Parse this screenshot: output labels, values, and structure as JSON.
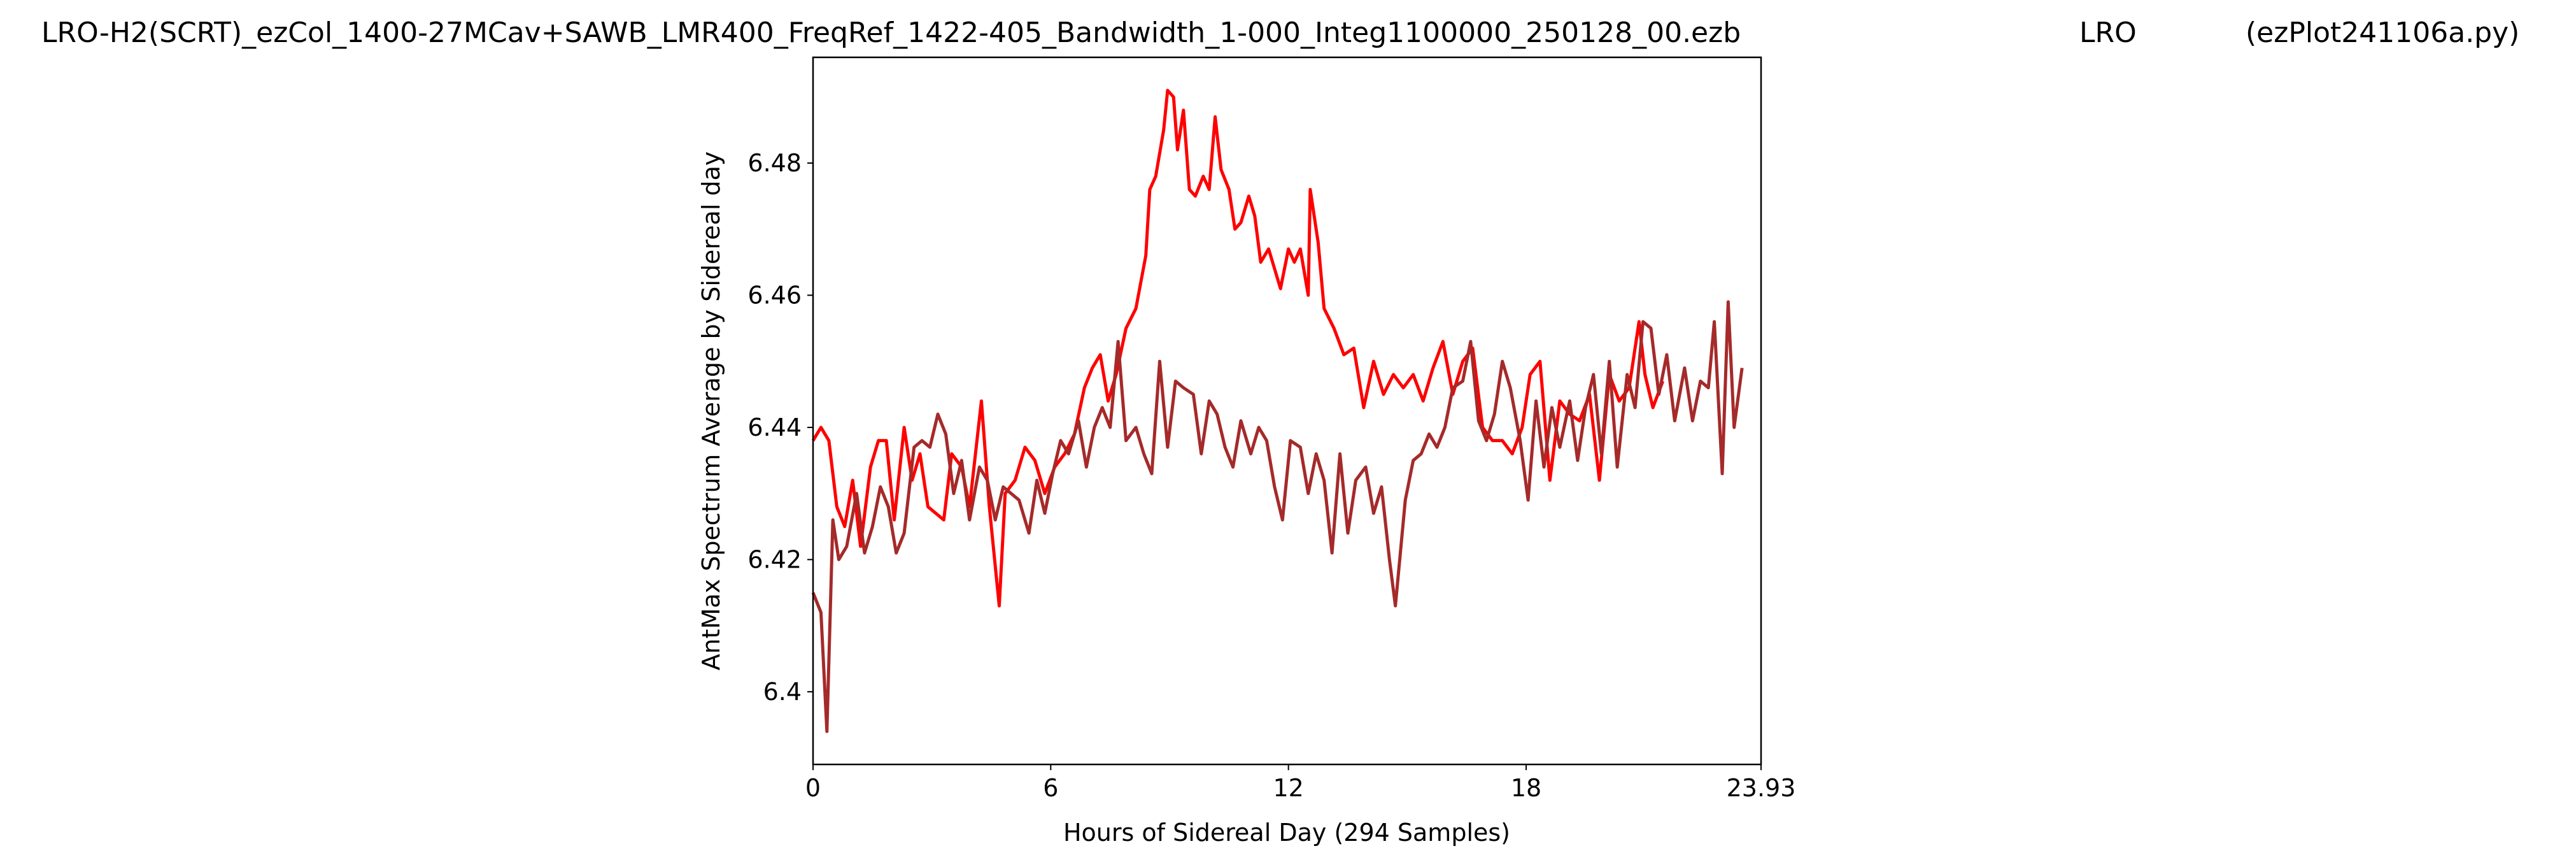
{
  "chart_data": {
    "type": "line",
    "title": [
      "LRO-H2(SCRT)_ezCol_1400-27MCav+SAWB_LMR400_FreqRef_1422-405_Bandwidth_1-000_Integ1100000_250128_00.ezb",
      "LRO",
      "(ezPlot241106a.py)"
    ],
    "xlabel": "Hours of Sidereal Day  (294 Samples)",
    "ylabel": "AntMax Spectrum Average by Sidereal day",
    "xlim": [
      0,
      23.93
    ],
    "xticks": [
      0,
      6,
      12,
      18,
      23.93
    ],
    "ylim": [
      6.389,
      6.496
    ],
    "yticks": [
      6.4,
      6.42,
      6.44,
      6.46,
      6.48
    ],
    "series": [
      {
        "color": "#ff0000",
        "x": [
          0,
          0.2,
          0.4,
          0.6,
          0.8,
          1.0,
          1.2,
          1.45,
          1.65,
          1.85,
          2.05,
          2.3,
          2.5,
          2.7,
          2.9,
          3.1,
          3.3,
          3.5,
          3.75,
          3.95,
          4.25,
          4.45,
          4.7,
          4.85,
          5.1,
          5.35,
          5.6,
          5.85,
          6.1,
          6.35,
          6.6,
          6.85,
          7.05,
          7.25,
          7.45,
          7.65,
          7.9,
          8.15,
          8.4,
          8.5,
          8.65,
          8.85,
          8.95,
          9.1,
          9.2,
          9.35,
          9.5,
          9.65,
          9.85,
          10.0,
          10.15,
          10.3,
          10.5,
          10.65,
          10.8,
          11.0,
          11.15,
          11.3,
          11.5,
          11.65,
          11.8,
          12.0,
          12.15,
          12.3,
          12.5,
          12.55,
          12.75,
          12.9,
          13.15,
          13.4,
          13.65,
          13.9,
          14.15,
          14.4,
          14.65,
          14.9,
          15.15,
          15.4,
          15.65,
          15.9,
          16.15,
          16.4,
          16.65,
          16.9,
          17.15,
          17.4,
          17.65,
          17.9,
          18.1,
          18.35,
          18.6,
          18.85,
          19.1,
          19.35,
          19.6,
          19.85,
          20.1,
          20.35,
          20.6,
          20.85,
          21.0,
          21.2,
          21.45
        ],
        "values": [
          6.438,
          6.44,
          6.438,
          6.428,
          6.425,
          6.432,
          6.422,
          6.434,
          6.438,
          6.438,
          6.426,
          6.44,
          6.432,
          6.436,
          6.428,
          6.427,
          6.426,
          6.436,
          6.434,
          6.428,
          6.444,
          6.428,
          6.413,
          6.43,
          6.432,
          6.437,
          6.435,
          6.43,
          6.434,
          6.436,
          6.439,
          6.446,
          6.449,
          6.451,
          6.444,
          6.448,
          6.455,
          6.458,
          6.466,
          6.476,
          6.478,
          6.485,
          6.491,
          6.49,
          6.482,
          6.488,
          6.476,
          6.475,
          6.478,
          6.476,
          6.487,
          6.479,
          6.476,
          6.47,
          6.471,
          6.475,
          6.472,
          6.465,
          6.467,
          6.464,
          6.461,
          6.467,
          6.465,
          6.467,
          6.46,
          6.476,
          6.468,
          6.458,
          6.455,
          6.451,
          6.452,
          6.443,
          6.45,
          6.445,
          6.448,
          6.446,
          6.448,
          6.444,
          6.449,
          6.453,
          6.445,
          6.45,
          6.452,
          6.44,
          6.438,
          6.438,
          6.436,
          6.44,
          6.448,
          6.45,
          6.432,
          6.444,
          6.442,
          6.441,
          6.445,
          6.432,
          6.448,
          6.444,
          6.446,
          6.456,
          6.448,
          6.443,
          6.447
        ]
      },
      {
        "color": "#a52a2a",
        "x": [
          0,
          0.2,
          0.35,
          0.5,
          0.65,
          0.85,
          1.1,
          1.3,
          1.5,
          1.7,
          1.9,
          2.1,
          2.3,
          2.55,
          2.75,
          2.95,
          3.15,
          3.35,
          3.55,
          3.75,
          3.95,
          4.2,
          4.4,
          4.6,
          4.8,
          5.0,
          5.2,
          5.45,
          5.65,
          5.85,
          6.05,
          6.25,
          6.45,
          6.7,
          6.9,
          7.1,
          7.3,
          7.5,
          7.7,
          7.9,
          8.15,
          8.35,
          8.55,
          8.75,
          8.95,
          9.15,
          9.35,
          9.6,
          9.8,
          10.0,
          10.2,
          10.4,
          10.6,
          10.8,
          11.05,
          11.25,
          11.45,
          11.65,
          11.85,
          12.05,
          12.3,
          12.5,
          12.7,
          12.9,
          13.1,
          13.3,
          13.5,
          13.7,
          13.95,
          14.15,
          14.35,
          14.55,
          14.7,
          14.95,
          15.15,
          15.35,
          15.55,
          15.75,
          15.95,
          16.15,
          16.4,
          16.6,
          16.8,
          17.0,
          17.2,
          17.4,
          17.6,
          17.85,
          18.05,
          18.25,
          18.45,
          18.65,
          18.85,
          19.1,
          19.3,
          19.5,
          19.7,
          19.9,
          20.1,
          20.3,
          20.55,
          20.75,
          20.95,
          21.15,
          21.35,
          21.55,
          21.75,
          22.0,
          22.2,
          22.4,
          22.6,
          22.75,
          22.95,
          23.1,
          23.25,
          23.45
        ],
        "values": [
          6.415,
          6.412,
          6.394,
          6.426,
          6.42,
          6.422,
          6.43,
          6.421,
          6.425,
          6.431,
          6.428,
          6.421,
          6.424,
          6.437,
          6.438,
          6.437,
          6.442,
          6.439,
          6.43,
          6.435,
          6.426,
          6.434,
          6.432,
          6.426,
          6.431,
          6.43,
          6.429,
          6.424,
          6.432,
          6.427,
          6.433,
          6.438,
          6.436,
          6.441,
          6.434,
          6.44,
          6.443,
          6.44,
          6.453,
          6.438,
          6.44,
          6.436,
          6.433,
          6.45,
          6.437,
          6.447,
          6.446,
          6.445,
          6.436,
          6.444,
          6.442,
          6.437,
          6.434,
          6.441,
          6.436,
          6.44,
          6.438,
          6.431,
          6.426,
          6.438,
          6.437,
          6.43,
          6.436,
          6.432,
          6.421,
          6.436,
          6.424,
          6.432,
          6.434,
          6.427,
          6.431,
          6.42,
          6.413,
          6.429,
          6.435,
          6.436,
          6.439,
          6.437,
          6.44,
          6.446,
          6.447,
          6.453,
          6.441,
          6.438,
          6.442,
          6.45,
          6.446,
          6.438,
          6.429,
          6.444,
          6.434,
          6.443,
          6.437,
          6.444,
          6.435,
          6.443,
          6.448,
          6.436,
          6.45,
          6.434,
          6.448,
          6.443,
          6.456,
          6.455,
          6.445,
          6.451,
          6.441,
          6.449,
          6.441,
          6.447,
          6.446,
          6.456,
          6.433,
          6.459,
          6.44,
          6.449
        ]
      }
    ]
  }
}
